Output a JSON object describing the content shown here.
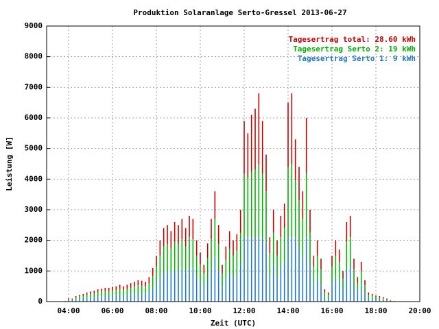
{
  "chart_data": {
    "type": "stacked_bar",
    "title": "Produktion Solaranlage Serto-Gressel 2013-06-27",
    "x_label": "Zeit (UTC)",
    "y_label": "Leistung [W]",
    "xlim": [
      180,
      1200
    ],
    "xticks": [
      {
        "value": 240,
        "label": "04:00"
      },
      {
        "value": 360,
        "label": "06:00"
      },
      {
        "value": 480,
        "label": "08:00"
      },
      {
        "value": 600,
        "label": "10:00"
      },
      {
        "value": 720,
        "label": "12:00"
      },
      {
        "value": 840,
        "label": "14:00"
      },
      {
        "value": 960,
        "label": "16:00"
      },
      {
        "value": 1080,
        "label": "18:00"
      },
      {
        "value": 1200,
        "label": "20:00"
      }
    ],
    "ylim": [
      0,
      9000
    ],
    "yticks": [
      0,
      1000,
      2000,
      3000,
      4000,
      5000,
      6000,
      7000,
      8000,
      9000
    ],
    "grid": true,
    "legend": "top-right",
    "x": [
      230,
      240,
      250,
      260,
      270,
      280,
      290,
      300,
      310,
      320,
      330,
      340,
      350,
      360,
      370,
      380,
      390,
      400,
      410,
      420,
      430,
      440,
      450,
      460,
      470,
      480,
      490,
      500,
      510,
      520,
      530,
      540,
      550,
      560,
      570,
      580,
      590,
      600,
      610,
      620,
      630,
      640,
      650,
      660,
      670,
      680,
      690,
      700,
      710,
      720,
      730,
      740,
      750,
      760,
      770,
      780,
      790,
      800,
      810,
      820,
      830,
      840,
      850,
      860,
      870,
      880,
      890,
      900,
      910,
      920,
      930,
      940,
      950,
      960,
      970,
      980,
      990,
      1000,
      1010,
      1020,
      1030,
      1040,
      1050,
      1060,
      1070,
      1080,
      1090,
      1100,
      1110,
      1120,
      1130
    ],
    "series": [
      {
        "name": "Tagesertrag Serto 1: 9 kWh",
        "color": "#1e78c8",
        "values": [
          10,
          20,
          40,
          70,
          90,
          100,
          120,
          130,
          140,
          160,
          170,
          180,
          180,
          190,
          200,
          220,
          200,
          220,
          240,
          260,
          280,
          270,
          260,
          320,
          440,
          600,
          800,
          960,
          1000,
          920,
          1040,
          1000,
          1080,
          960,
          1120,
          1080,
          800,
          640,
          480,
          760,
          1080,
          1440,
          1000,
          480,
          720,
          920,
          800,
          880,
          1200,
          2100,
          2100,
          2100,
          2100,
          2100,
          2100,
          1920,
          840,
          1200,
          800,
          1120,
          1280,
          2100,
          2100,
          2100,
          1760,
          1440,
          2100,
          1200,
          600,
          800,
          560,
          160,
          120,
          600,
          800,
          680,
          400,
          1040,
          1120,
          560,
          320,
          520,
          280,
          120,
          100,
          80,
          70,
          60,
          40,
          20,
          10
        ]
      },
      {
        "name": "Tagesertrag Serto 2: 19 kWh",
        "color": "#00b000",
        "values": [
          10,
          20,
          30,
          60,
          80,
          90,
          100,
          120,
          130,
          140,
          150,
          160,
          160,
          170,
          180,
          190,
          180,
          190,
          210,
          230,
          250,
          240,
          230,
          280,
          390,
          530,
          700,
          840,
          880,
          810,
          910,
          880,
          950,
          840,
          980,
          950,
          700,
          560,
          420,
          670,
          950,
          1260,
          880,
          420,
          630,
          810,
          700,
          770,
          1050,
          2070,
          1930,
          2140,
          2210,
          2380,
          2070,
          1680,
          740,
          1050,
          700,
          980,
          1120,
          2280,
          2380,
          1860,
          1540,
          1260,
          2100,
          1050,
          530,
          700,
          490,
          140,
          100,
          530,
          700,
          600,
          350,
          910,
          980,
          490,
          280,
          460,
          250,
          100,
          90,
          70,
          60,
          50,
          30,
          20,
          10
        ]
      },
      {
        "name": "Tagesertrag total: 28.60 kWh",
        "color": "#c80000",
        "values": [
          0,
          10,
          30,
          50,
          50,
          60,
          80,
          80,
          90,
          100,
          100,
          110,
          110,
          120,
          120,
          140,
          120,
          140,
          150,
          160,
          170,
          170,
          160,
          200,
          270,
          370,
          500,
          600,
          620,
          570,
          650,
          620,
          670,
          600,
          700,
          670,
          500,
          400,
          300,
          470,
          670,
          900,
          620,
          300,
          450,
          570,
          500,
          550,
          750,
          1730,
          1470,
          1860,
          1990,
          2320,
          1730,
          1200,
          520,
          750,
          500,
          700,
          800,
          2120,
          2320,
          1340,
          1100,
          900,
          1800,
          750,
          370,
          500,
          350,
          100,
          80,
          370,
          500,
          420,
          250,
          650,
          700,
          350,
          200,
          320,
          170,
          80,
          60,
          50,
          50,
          40,
          30,
          10,
          0
        ]
      }
    ]
  }
}
